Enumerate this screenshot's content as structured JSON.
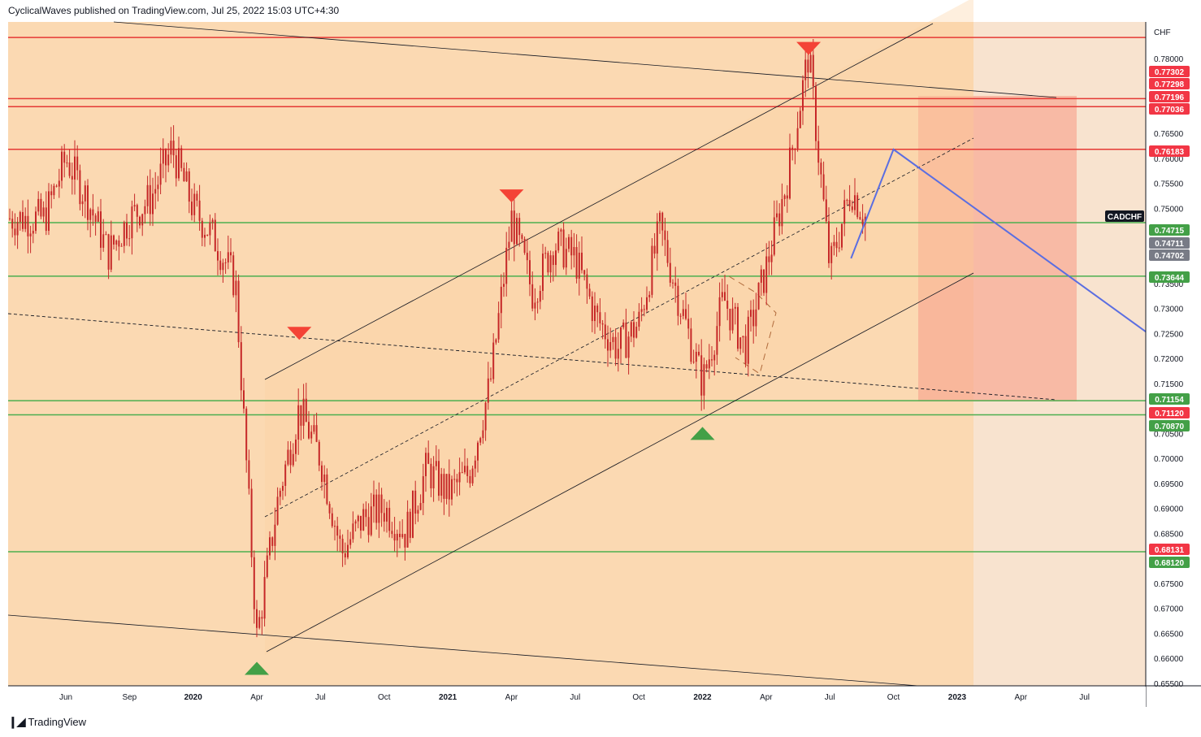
{
  "header": {
    "text": "CyclicalWaves published on TradingView.com, Jul 25, 2022 15:03 UTC+4:30"
  },
  "footer": {
    "brand": "TradingView"
  },
  "colors": {
    "background": "#f8e3cf",
    "zone_orange": "#fcd6a8",
    "projection_red": "#f7a58f",
    "red_line": "#e53935",
    "green_line": "#4caf50",
    "candle": "#c62828",
    "projection_blue": "#5b6ee1",
    "label_red": "#f23645",
    "label_green": "#43a047",
    "label_gray": "#787b86",
    "label_black": "#131722"
  },
  "chart_data": {
    "type": "candlestick",
    "symbol": "CADCHF",
    "currency": "CHF",
    "x_tick_labels": [
      "Jun",
      "Sep",
      "2020",
      "Apr",
      "Jul",
      "Oct",
      "2021",
      "Apr",
      "Jul",
      "Oct",
      "2022",
      "Apr",
      "Jul",
      "Oct",
      "2023",
      "Apr",
      "Jul"
    ],
    "y_ticks": [
      0.78,
      0.765,
      0.76,
      0.755,
      0.75,
      0.735,
      0.73,
      0.725,
      0.72,
      0.715,
      0.705,
      0.7,
      0.695,
      0.69,
      0.685,
      0.675,
      0.67,
      0.665,
      0.66,
      0.655
    ],
    "ylim": [
      0.6545,
      0.7873
    ],
    "price_labels": [
      {
        "value": "0.77302",
        "style": "red"
      },
      {
        "value": "0.77298",
        "style": "red"
      },
      {
        "value": "0.77196",
        "style": "red"
      },
      {
        "value": "0.77036",
        "style": "red"
      },
      {
        "value": "0.76183",
        "style": "red"
      },
      {
        "value": "CADCHF",
        "style": "symbol"
      },
      {
        "value": "0.74715",
        "style": "green"
      },
      {
        "value": "0.74711",
        "style": "gray"
      },
      {
        "value": "0.74702",
        "style": "gray"
      },
      {
        "value": "0.73644",
        "style": "green"
      },
      {
        "value": "0.71154",
        "style": "green"
      },
      {
        "value": "0.71120",
        "style": "red"
      },
      {
        "value": "0.70870",
        "style": "green"
      },
      {
        "value": "0.68131",
        "style": "red"
      },
      {
        "value": "0.68120",
        "style": "green"
      }
    ],
    "horizontal_levels": [
      {
        "price": 0.7842,
        "color": "red"
      },
      {
        "price": 0.77196,
        "color": "red"
      },
      {
        "price": 0.77036,
        "color": "red"
      },
      {
        "price": 0.76183,
        "color": "red"
      },
      {
        "price": 0.74715,
        "color": "green"
      },
      {
        "price": 0.73644,
        "color": "green"
      },
      {
        "price": 0.71154,
        "color": "green"
      },
      {
        "price": 0.7087,
        "color": "green"
      },
      {
        "price": 0.68131,
        "color": "green"
      }
    ],
    "markers": [
      {
        "type": "down",
        "date": "2022-05",
        "price": 0.782
      },
      {
        "type": "down",
        "date": "2021-03",
        "price": 0.7525
      },
      {
        "type": "down",
        "date": "2020-05",
        "price": 0.725
      },
      {
        "type": "up",
        "date": "2021-12",
        "price": 0.705
      },
      {
        "type": "up",
        "date": "2020-03",
        "price": 0.658
      }
    ],
    "projection_path": [
      {
        "date": "2022-07",
        "price": 0.74
      },
      {
        "date": "2022-09",
        "price": 0.7618
      },
      {
        "date": "2023-09",
        "price": 0.725
      }
    ],
    "price_series": [
      {
        "date": "2019-05",
        "price": 0.748
      },
      {
        "date": "2019-06",
        "price": 0.76
      },
      {
        "date": "2019-07",
        "price": 0.752
      },
      {
        "date": "2019-08",
        "price": 0.741
      },
      {
        "date": "2019-09",
        "price": 0.748
      },
      {
        "date": "2019-10",
        "price": 0.752
      },
      {
        "date": "2019-11",
        "price": 0.762
      },
      {
        "date": "2019-12",
        "price": 0.75
      },
      {
        "date": "2020-01",
        "price": 0.744
      },
      {
        "date": "2020-02",
        "price": 0.735
      },
      {
        "date": "2020-03",
        "price": 0.664
      },
      {
        "date": "2020-04",
        "price": 0.692
      },
      {
        "date": "2020-05",
        "price": 0.71
      },
      {
        "date": "2020-06",
        "price": 0.7
      },
      {
        "date": "2020-07",
        "price": 0.681
      },
      {
        "date": "2020-08",
        "price": 0.688
      },
      {
        "date": "2020-09",
        "price": 0.69
      },
      {
        "date": "2020-10",
        "price": 0.685
      },
      {
        "date": "2020-11",
        "price": 0.698
      },
      {
        "date": "2020-12",
        "price": 0.693
      },
      {
        "date": "2021-01",
        "price": 0.697
      },
      {
        "date": "2021-02",
        "price": 0.715
      },
      {
        "date": "2021-03",
        "price": 0.748
      },
      {
        "date": "2021-04",
        "price": 0.733
      },
      {
        "date": "2021-05",
        "price": 0.743
      },
      {
        "date": "2021-06",
        "price": 0.74
      },
      {
        "date": "2021-07",
        "price": 0.728
      },
      {
        "date": "2021-08",
        "price": 0.722
      },
      {
        "date": "2021-09",
        "price": 0.727
      },
      {
        "date": "2021-10",
        "price": 0.746
      },
      {
        "date": "2021-11",
        "price": 0.73
      },
      {
        "date": "2021-12",
        "price": 0.715
      },
      {
        "date": "2022-01",
        "price": 0.732
      },
      {
        "date": "2022-02",
        "price": 0.722
      },
      {
        "date": "2022-03",
        "price": 0.738
      },
      {
        "date": "2022-04",
        "price": 0.756
      },
      {
        "date": "2022-05",
        "price": 0.781
      },
      {
        "date": "2022-06",
        "price": 0.738
      },
      {
        "date": "2022-07",
        "price": 0.754
      },
      {
        "date": "2022-07-25",
        "price": 0.7471
      }
    ]
  }
}
